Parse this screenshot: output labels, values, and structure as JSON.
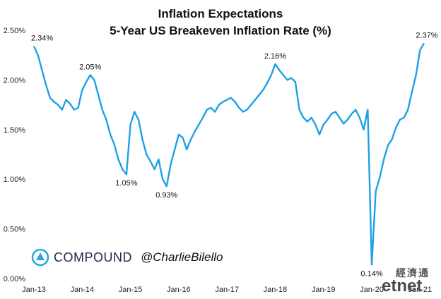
{
  "title": "Inflation Expectations",
  "subtitle": "5-Year US Breakeven Inflation Rate (%)",
  "brand": {
    "name": "COMPOUND",
    "handle": "@CharlieBilello"
  },
  "watermark": {
    "cn": "經濟通",
    "text": "etnet"
  },
  "colors": {
    "line": "#1ea0e6",
    "text": "#111111"
  },
  "chart_data": {
    "type": "line",
    "title": "Inflation Expectations",
    "subtitle": "5-Year US Breakeven Inflation Rate (%)",
    "xlabel": "",
    "ylabel": "",
    "xlim": [
      0,
      97
    ],
    "ylim": [
      0.0,
      2.5
    ],
    "y_ticks": [
      "0.00%",
      "0.50%",
      "1.00%",
      "1.50%",
      "2.00%",
      "2.50%"
    ],
    "y_tick_values": [
      0,
      0.5,
      1.0,
      1.5,
      2.0,
      2.5
    ],
    "x_ticks": [
      "Jan-13",
      "Jan-14",
      "Jan-15",
      "Jan-16",
      "Jan-17",
      "Jan-18",
      "Jan-19",
      "Jan-20",
      "Jan-21"
    ],
    "x_tick_values": [
      0,
      12,
      24,
      36,
      48,
      60,
      72,
      84,
      96
    ],
    "grid": false,
    "series": [
      {
        "x": [
          0,
          1,
          2,
          3,
          4,
          5,
          6,
          7,
          8,
          9,
          10,
          11,
          12,
          13,
          14,
          15,
          16,
          17,
          18,
          19,
          20,
          21,
          22,
          23,
          24,
          25,
          26,
          27,
          28,
          29,
          30,
          31,
          32,
          33,
          34,
          35,
          36,
          37,
          38,
          39,
          40,
          41,
          42,
          43,
          44,
          45,
          46,
          47,
          48,
          49,
          50,
          51,
          52,
          53,
          54,
          55,
          56,
          57,
          58,
          59,
          60,
          61,
          62,
          63,
          64,
          65,
          66,
          67,
          68,
          69,
          70,
          71,
          72,
          73,
          74,
          75,
          76,
          77,
          78,
          79,
          80,
          81,
          82,
          83,
          84,
          85,
          86,
          87,
          88,
          89,
          90,
          91,
          92,
          93,
          94,
          95,
          96,
          97
        ],
        "y": [
          2.34,
          2.25,
          2.1,
          1.95,
          1.82,
          1.78,
          1.75,
          1.7,
          1.8,
          1.76,
          1.7,
          1.72,
          1.9,
          1.98,
          2.05,
          2.0,
          1.85,
          1.7,
          1.6,
          1.45,
          1.35,
          1.2,
          1.1,
          1.05,
          1.55,
          1.68,
          1.6,
          1.4,
          1.25,
          1.18,
          1.1,
          1.2,
          1.0,
          0.93,
          1.15,
          1.3,
          1.45,
          1.42,
          1.3,
          1.4,
          1.48,
          1.55,
          1.62,
          1.7,
          1.72,
          1.68,
          1.75,
          1.78,
          1.8,
          1.82,
          1.78,
          1.72,
          1.68,
          1.7,
          1.75,
          1.8,
          1.85,
          1.9,
          1.97,
          2.05,
          2.16,
          2.1,
          2.05,
          2.0,
          2.02,
          1.98,
          1.7,
          1.62,
          1.58,
          1.62,
          1.55,
          1.45,
          1.55,
          1.6,
          1.66,
          1.68,
          1.62,
          1.56,
          1.6,
          1.66,
          1.7,
          1.62,
          1.5,
          1.7,
          0.14,
          0.88,
          1.02,
          1.2,
          1.34,
          1.4,
          1.52,
          1.6,
          1.62,
          1.7,
          1.88,
          2.05,
          2.3,
          2.37
        ]
      }
    ],
    "annotations": [
      {
        "x": 0,
        "y": 2.34,
        "label": "2.34%"
      },
      {
        "x": 14,
        "y": 2.05,
        "label": "2.05%"
      },
      {
        "x": 23,
        "y": 1.05,
        "label": "1.05%"
      },
      {
        "x": 33,
        "y": 0.93,
        "label": "0.93%"
      },
      {
        "x": 60,
        "y": 2.16,
        "label": "2.16%"
      },
      {
        "x": 84,
        "y": 0.14,
        "label": "0.14%"
      },
      {
        "x": 97,
        "y": 2.37,
        "label": "2.37%"
      }
    ]
  }
}
